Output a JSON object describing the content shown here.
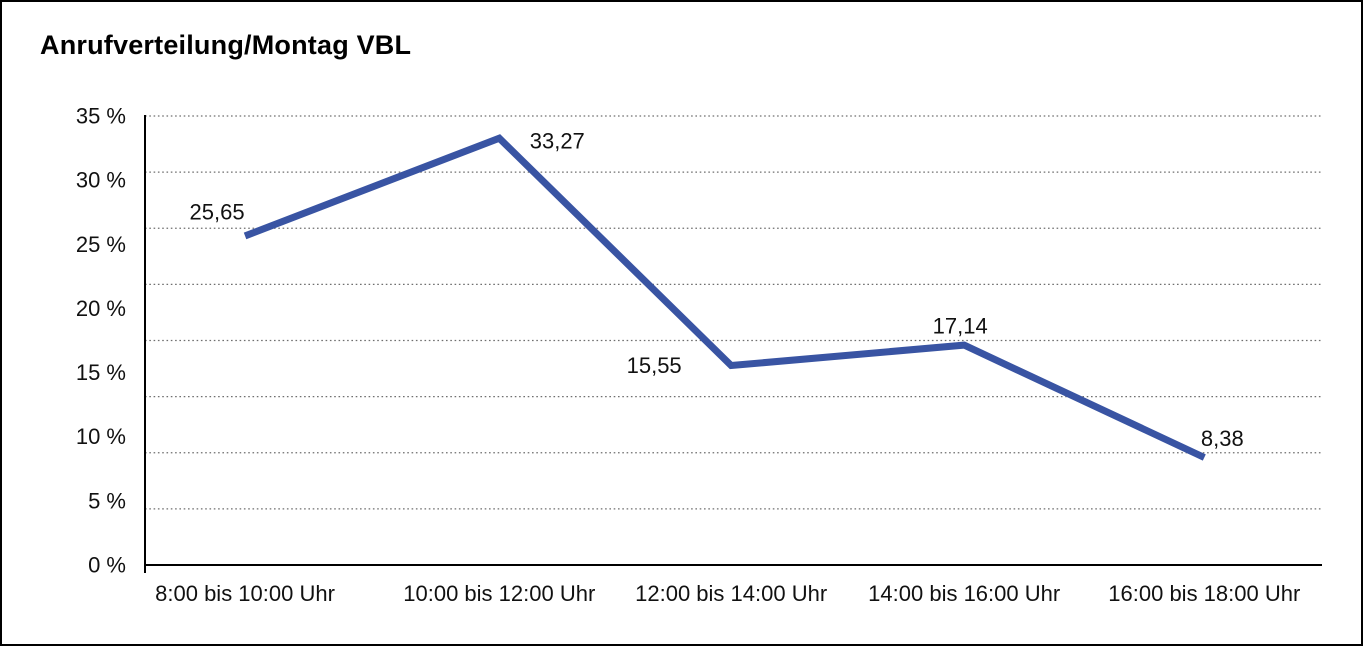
{
  "title": "Anrufverteilung/Montag VBL",
  "chart_data": {
    "type": "line",
    "title": "Anrufverteilung/Montag VBL",
    "categories": [
      "8:00 bis 10:00 Uhr",
      "10:00 bis 12:00 Uhr",
      "12:00 bis 14:00 Uhr",
      "14:00 bis 16:00 Uhr",
      "16:00 bis 18:00 Uhr"
    ],
    "values": [
      25.65,
      33.27,
      15.55,
      17.14,
      8.38
    ],
    "point_labels": [
      "25,65",
      "33,27",
      "15,55",
      "17,14",
      "8,38"
    ],
    "y_tick_labels": [
      "0 %",
      "5 %",
      "10 %",
      "15 %",
      "20 %",
      "25 %",
      "30 %",
      "35 %"
    ],
    "y_tick_values": [
      0,
      5,
      10,
      15,
      20,
      25,
      30,
      35
    ],
    "ylim": [
      0,
      35
    ],
    "xlabel": "",
    "ylabel": "",
    "legend": "none",
    "grid": "horizontal-dotted",
    "line_color": "#3954A3",
    "grid_color": "#6F6F6F",
    "axis_color": "#000000",
    "text_color": "#111111",
    "background_color": "#FFFFFF",
    "frame_color": "#000000"
  }
}
